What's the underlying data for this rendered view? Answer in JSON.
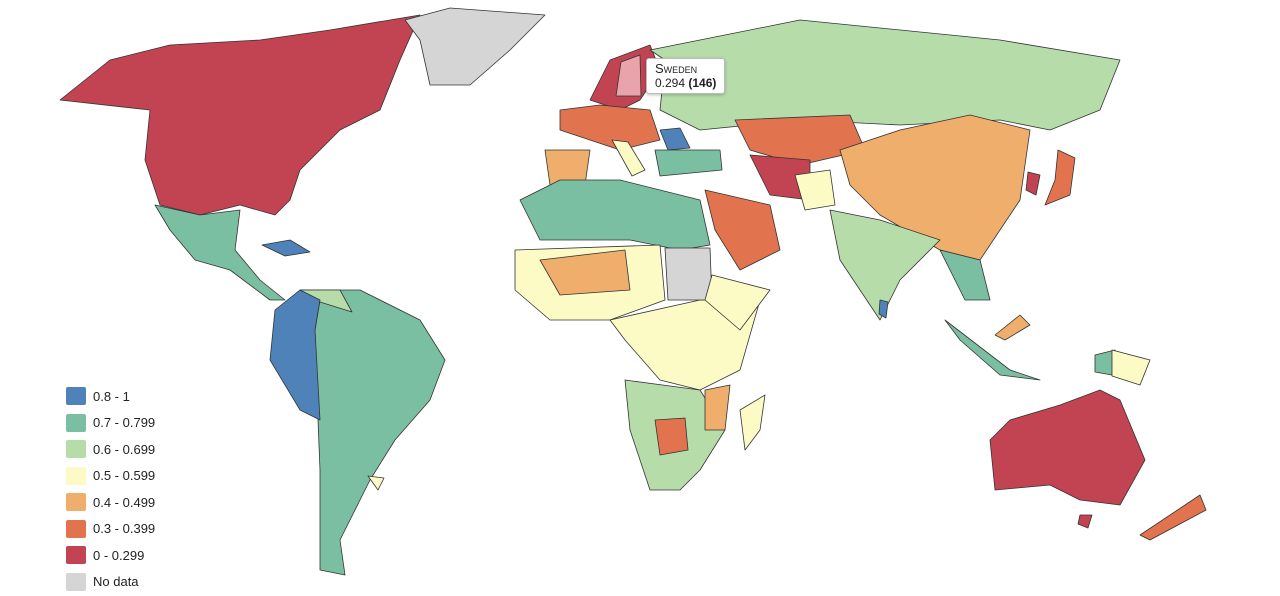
{
  "legend": {
    "items": [
      {
        "label": "0.8 - 1",
        "color": "#4f82b8"
      },
      {
        "label": "0.7 - 0.799",
        "color": "#7bbfa3"
      },
      {
        "label": "0.6 - 0.699",
        "color": "#b6dcaa"
      },
      {
        "label": "0.5 - 0.599",
        "color": "#fcfbc6"
      },
      {
        "label": "0.4 - 0.499",
        "color": "#f0ae6c"
      },
      {
        "label": "0.3 - 0.399",
        "color": "#e2734f"
      },
      {
        "label": "0 - 0.299",
        "color": "#c24452"
      },
      {
        "label": "No data",
        "color": "#d5d5d5"
      }
    ]
  },
  "tooltip": {
    "name": "Sweden",
    "value": 0.294,
    "rank": "(146)",
    "highlight_color": "#e8a3ab"
  }
}
